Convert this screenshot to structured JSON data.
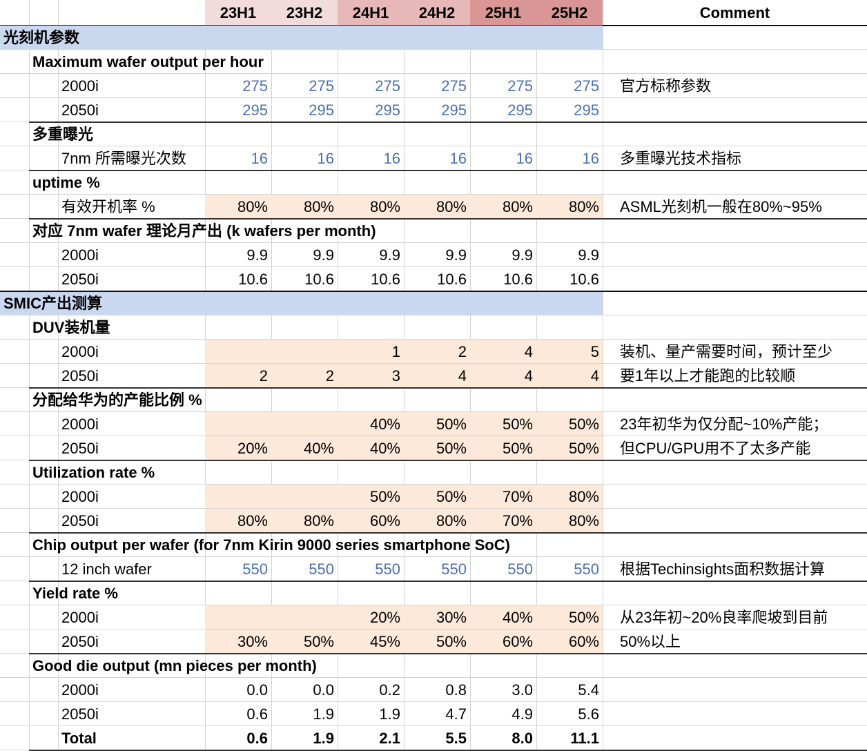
{
  "header": {
    "periods": [
      "23H1",
      "23H2",
      "24H1",
      "24H2",
      "25H1",
      "25H2"
    ],
    "comment_label": "Comment"
  },
  "colors": {
    "header_tints": [
      "#f2dcdb",
      "#f2dcdb",
      "#e6b8b7",
      "#e6b8b7",
      "#da9694",
      "#da9694"
    ],
    "section_band": "#c9d7ef",
    "input_fill": "#fce9d9",
    "input_blue": "#4a6fb0"
  },
  "rows": [
    {
      "type": "section",
      "label": "光刻机参数"
    },
    {
      "type": "group",
      "label": "Maximum wafer output per hour"
    },
    {
      "type": "item",
      "label": "2000i",
      "values": [
        "275",
        "275",
        "275",
        "275",
        "275",
        "275"
      ],
      "style": "blue",
      "comment": "官方标称参数"
    },
    {
      "type": "item",
      "label": "2050i",
      "values": [
        "295",
        "295",
        "295",
        "295",
        "295",
        "295"
      ],
      "style": "blue",
      "border": true
    },
    {
      "type": "group",
      "label": "多重曝光"
    },
    {
      "type": "item",
      "label": "7nm 所需曝光次数",
      "values": [
        "16",
        "16",
        "16",
        "16",
        "16",
        "16"
      ],
      "style": "blue",
      "comment": "多重曝光技术指标",
      "border": true
    },
    {
      "type": "group",
      "label": "uptime %"
    },
    {
      "type": "item",
      "label": "有效开机率 %",
      "values": [
        "80%",
        "80%",
        "80%",
        "80%",
        "80%",
        "80%"
      ],
      "fill": [
        0,
        1,
        2,
        3,
        4,
        5
      ],
      "comment": "ASML光刻机一般在80%~95%",
      "border": true
    },
    {
      "type": "group",
      "label": "对应 7nm wafer 理论月产出 (k wafers per month)"
    },
    {
      "type": "item",
      "label": "2000i",
      "values": [
        "9.9",
        "9.9",
        "9.9",
        "9.9",
        "9.9",
        "9.9"
      ]
    },
    {
      "type": "item",
      "label": "2050i",
      "values": [
        "10.6",
        "10.6",
        "10.6",
        "10.6",
        "10.6",
        "10.6"
      ],
      "border": true
    },
    {
      "type": "section",
      "label": "SMIC产出测算"
    },
    {
      "type": "group",
      "label": "DUV装机量"
    },
    {
      "type": "item",
      "label": "2000i",
      "values": [
        "",
        "",
        "1",
        "2",
        "4",
        "5"
      ],
      "fill": [
        0,
        1,
        2,
        3,
        4,
        5
      ],
      "comment": "装机、量产需要时间，预计至少"
    },
    {
      "type": "item",
      "label": "2050i",
      "values": [
        "2",
        "2",
        "3",
        "4",
        "4",
        "4"
      ],
      "fill": [
        0,
        1,
        2,
        3,
        4,
        5
      ],
      "comment": "要1年以上才能跑的比较顺",
      "border": true
    },
    {
      "type": "group",
      "label": "分配给华为的产能比例 %"
    },
    {
      "type": "item",
      "label": "2000i",
      "values": [
        "",
        "",
        "40%",
        "50%",
        "50%",
        "50%"
      ],
      "fill": [
        0,
        1,
        2,
        3,
        4,
        5
      ],
      "comment": "23年初华为仅分配~10%产能；"
    },
    {
      "type": "item",
      "label": "2050i",
      "values": [
        "20%",
        "40%",
        "40%",
        "50%",
        "50%",
        "50%"
      ],
      "fill": [
        0,
        1,
        2,
        3,
        4,
        5
      ],
      "comment": "但CPU/GPU用不了太多产能",
      "border": true
    },
    {
      "type": "group",
      "label": "Utilization rate %"
    },
    {
      "type": "item",
      "label": "2000i",
      "values": [
        "",
        "",
        "50%",
        "50%",
        "70%",
        "80%"
      ],
      "fill": [
        0,
        1,
        2,
        3,
        4,
        5
      ]
    },
    {
      "type": "item",
      "label": "2050i",
      "values": [
        "80%",
        "80%",
        "60%",
        "80%",
        "70%",
        "80%"
      ],
      "fill": [
        0,
        1,
        2,
        3,
        4,
        5
      ],
      "border": true
    },
    {
      "type": "group",
      "label": "Chip output per wafer (for 7nm Kirin 9000 series smartphone SoC)"
    },
    {
      "type": "item",
      "label": "12 inch wafer",
      "values": [
        "550",
        "550",
        "550",
        "550",
        "550",
        "550"
      ],
      "style": "blue",
      "comment": "根据Techinsights面积数据计算",
      "border": true
    },
    {
      "type": "group",
      "label": "Yield rate %"
    },
    {
      "type": "item",
      "label": "2000i",
      "values": [
        "",
        "",
        "20%",
        "30%",
        "40%",
        "50%"
      ],
      "fill": [
        0,
        1,
        2,
        3,
        4,
        5
      ],
      "comment": "从23年初~20%良率爬坡到目前"
    },
    {
      "type": "item",
      "label": "2050i",
      "values": [
        "30%",
        "50%",
        "45%",
        "50%",
        "60%",
        "60%"
      ],
      "fill": [
        0,
        1,
        2,
        3,
        4,
        5
      ],
      "comment": "50%以上",
      "border": true
    },
    {
      "type": "group",
      "label": "Good die output (mn pieces per month)"
    },
    {
      "type": "item",
      "label": "2000i",
      "values": [
        "0.0",
        "0.0",
        "0.2",
        "0.8",
        "3.0",
        "5.4"
      ]
    },
    {
      "type": "item",
      "label": "2050i",
      "values": [
        "0.6",
        "1.9",
        "1.9",
        "4.7",
        "4.9",
        "5.6"
      ]
    },
    {
      "type": "item",
      "label": "Total",
      "values": [
        "0.6",
        "1.9",
        "2.1",
        "5.5",
        "8.0",
        "11.1"
      ],
      "style": "bold",
      "border": true
    }
  ]
}
